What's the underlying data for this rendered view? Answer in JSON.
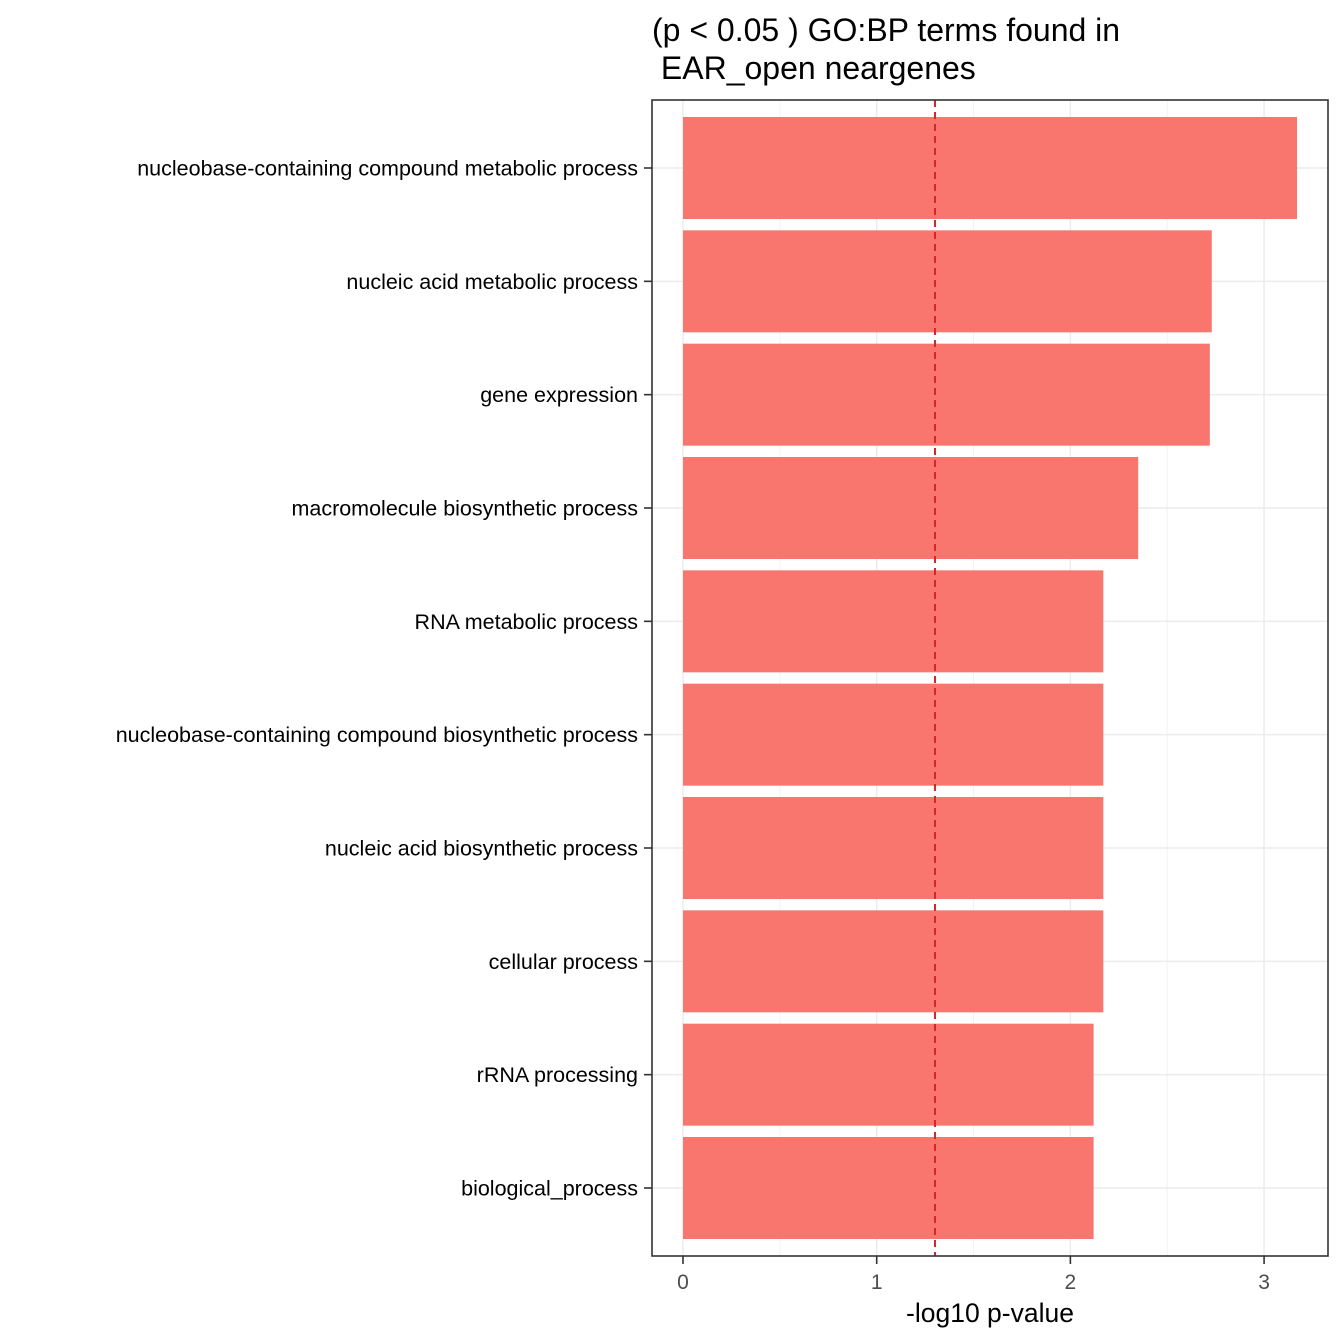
{
  "chart_data": {
    "type": "bar",
    "orientation": "horizontal",
    "title_lines": [
      "(p < 0.05 ) GO:BP terms found in",
      " EAR_open neargenes"
    ],
    "xlabel": "-log10 p-value",
    "ylabel": "",
    "categories": [
      "nucleobase-containing compound metabolic process",
      "nucleic acid metabolic process",
      "gene expression",
      "macromolecule biosynthetic process",
      "RNA metabolic process",
      "nucleobase-containing compound biosynthetic process",
      "nucleic acid biosynthetic process",
      "cellular process",
      "rRNA processing",
      "biological_process"
    ],
    "values": [
      3.17,
      2.73,
      2.72,
      2.35,
      2.17,
      2.17,
      2.17,
      2.17,
      2.12,
      2.12
    ],
    "xlim": [
      -0.16,
      3.33
    ],
    "xticks": [
      0,
      1,
      2,
      3
    ],
    "reference_line": {
      "x": 1.301,
      "style": "dashed",
      "color": "#d62728"
    },
    "bar_color": "#f8766d",
    "grid": true,
    "legend": "none"
  }
}
